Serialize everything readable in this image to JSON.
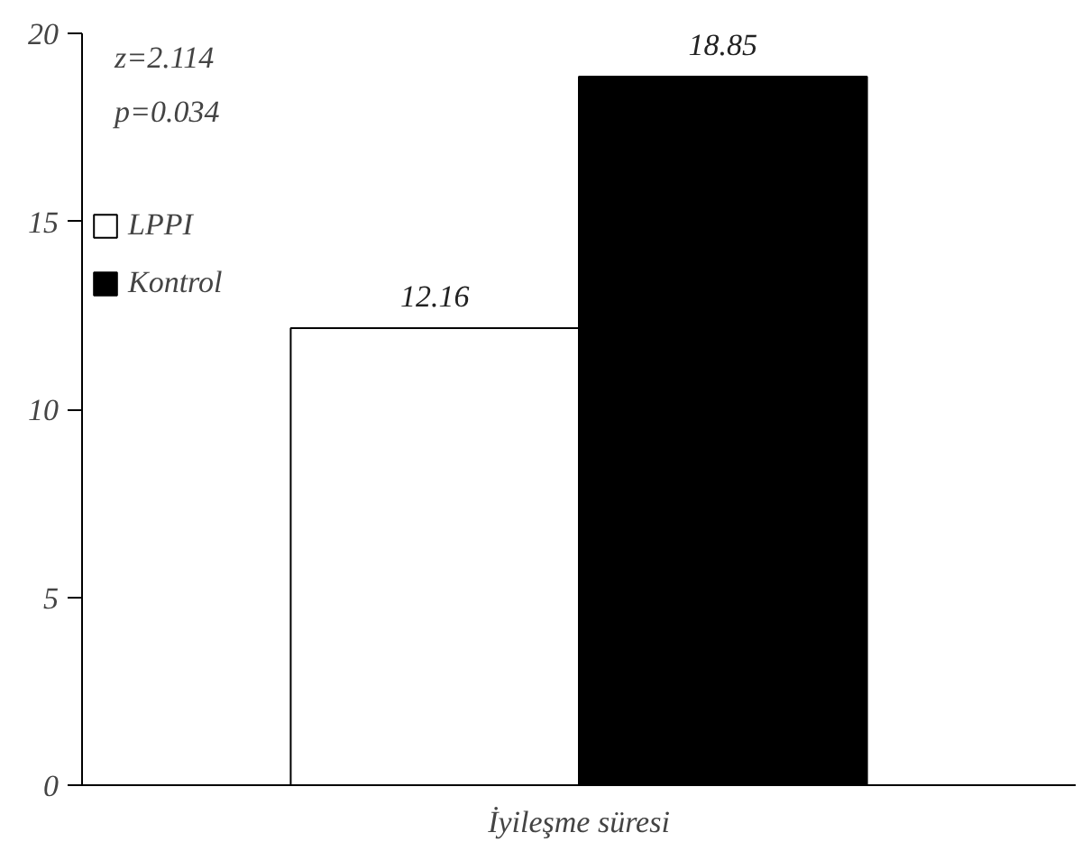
{
  "chart_data": {
    "type": "bar",
    "categories": [
      "İyileşme süresi"
    ],
    "series": [
      {
        "name": "LPPI",
        "color": "#ffffff",
        "values": [
          12.16
        ]
      },
      {
        "name": "Kontrol",
        "color": "#000000",
        "values": [
          18.85
        ]
      }
    ],
    "ylim": [
      0,
      20
    ],
    "yticks": [
      0,
      5,
      10,
      15,
      20
    ],
    "grid": false,
    "legend": "top left",
    "data_labels": true,
    "annotations": [
      "z=2.114",
      "p=0.034"
    ]
  }
}
